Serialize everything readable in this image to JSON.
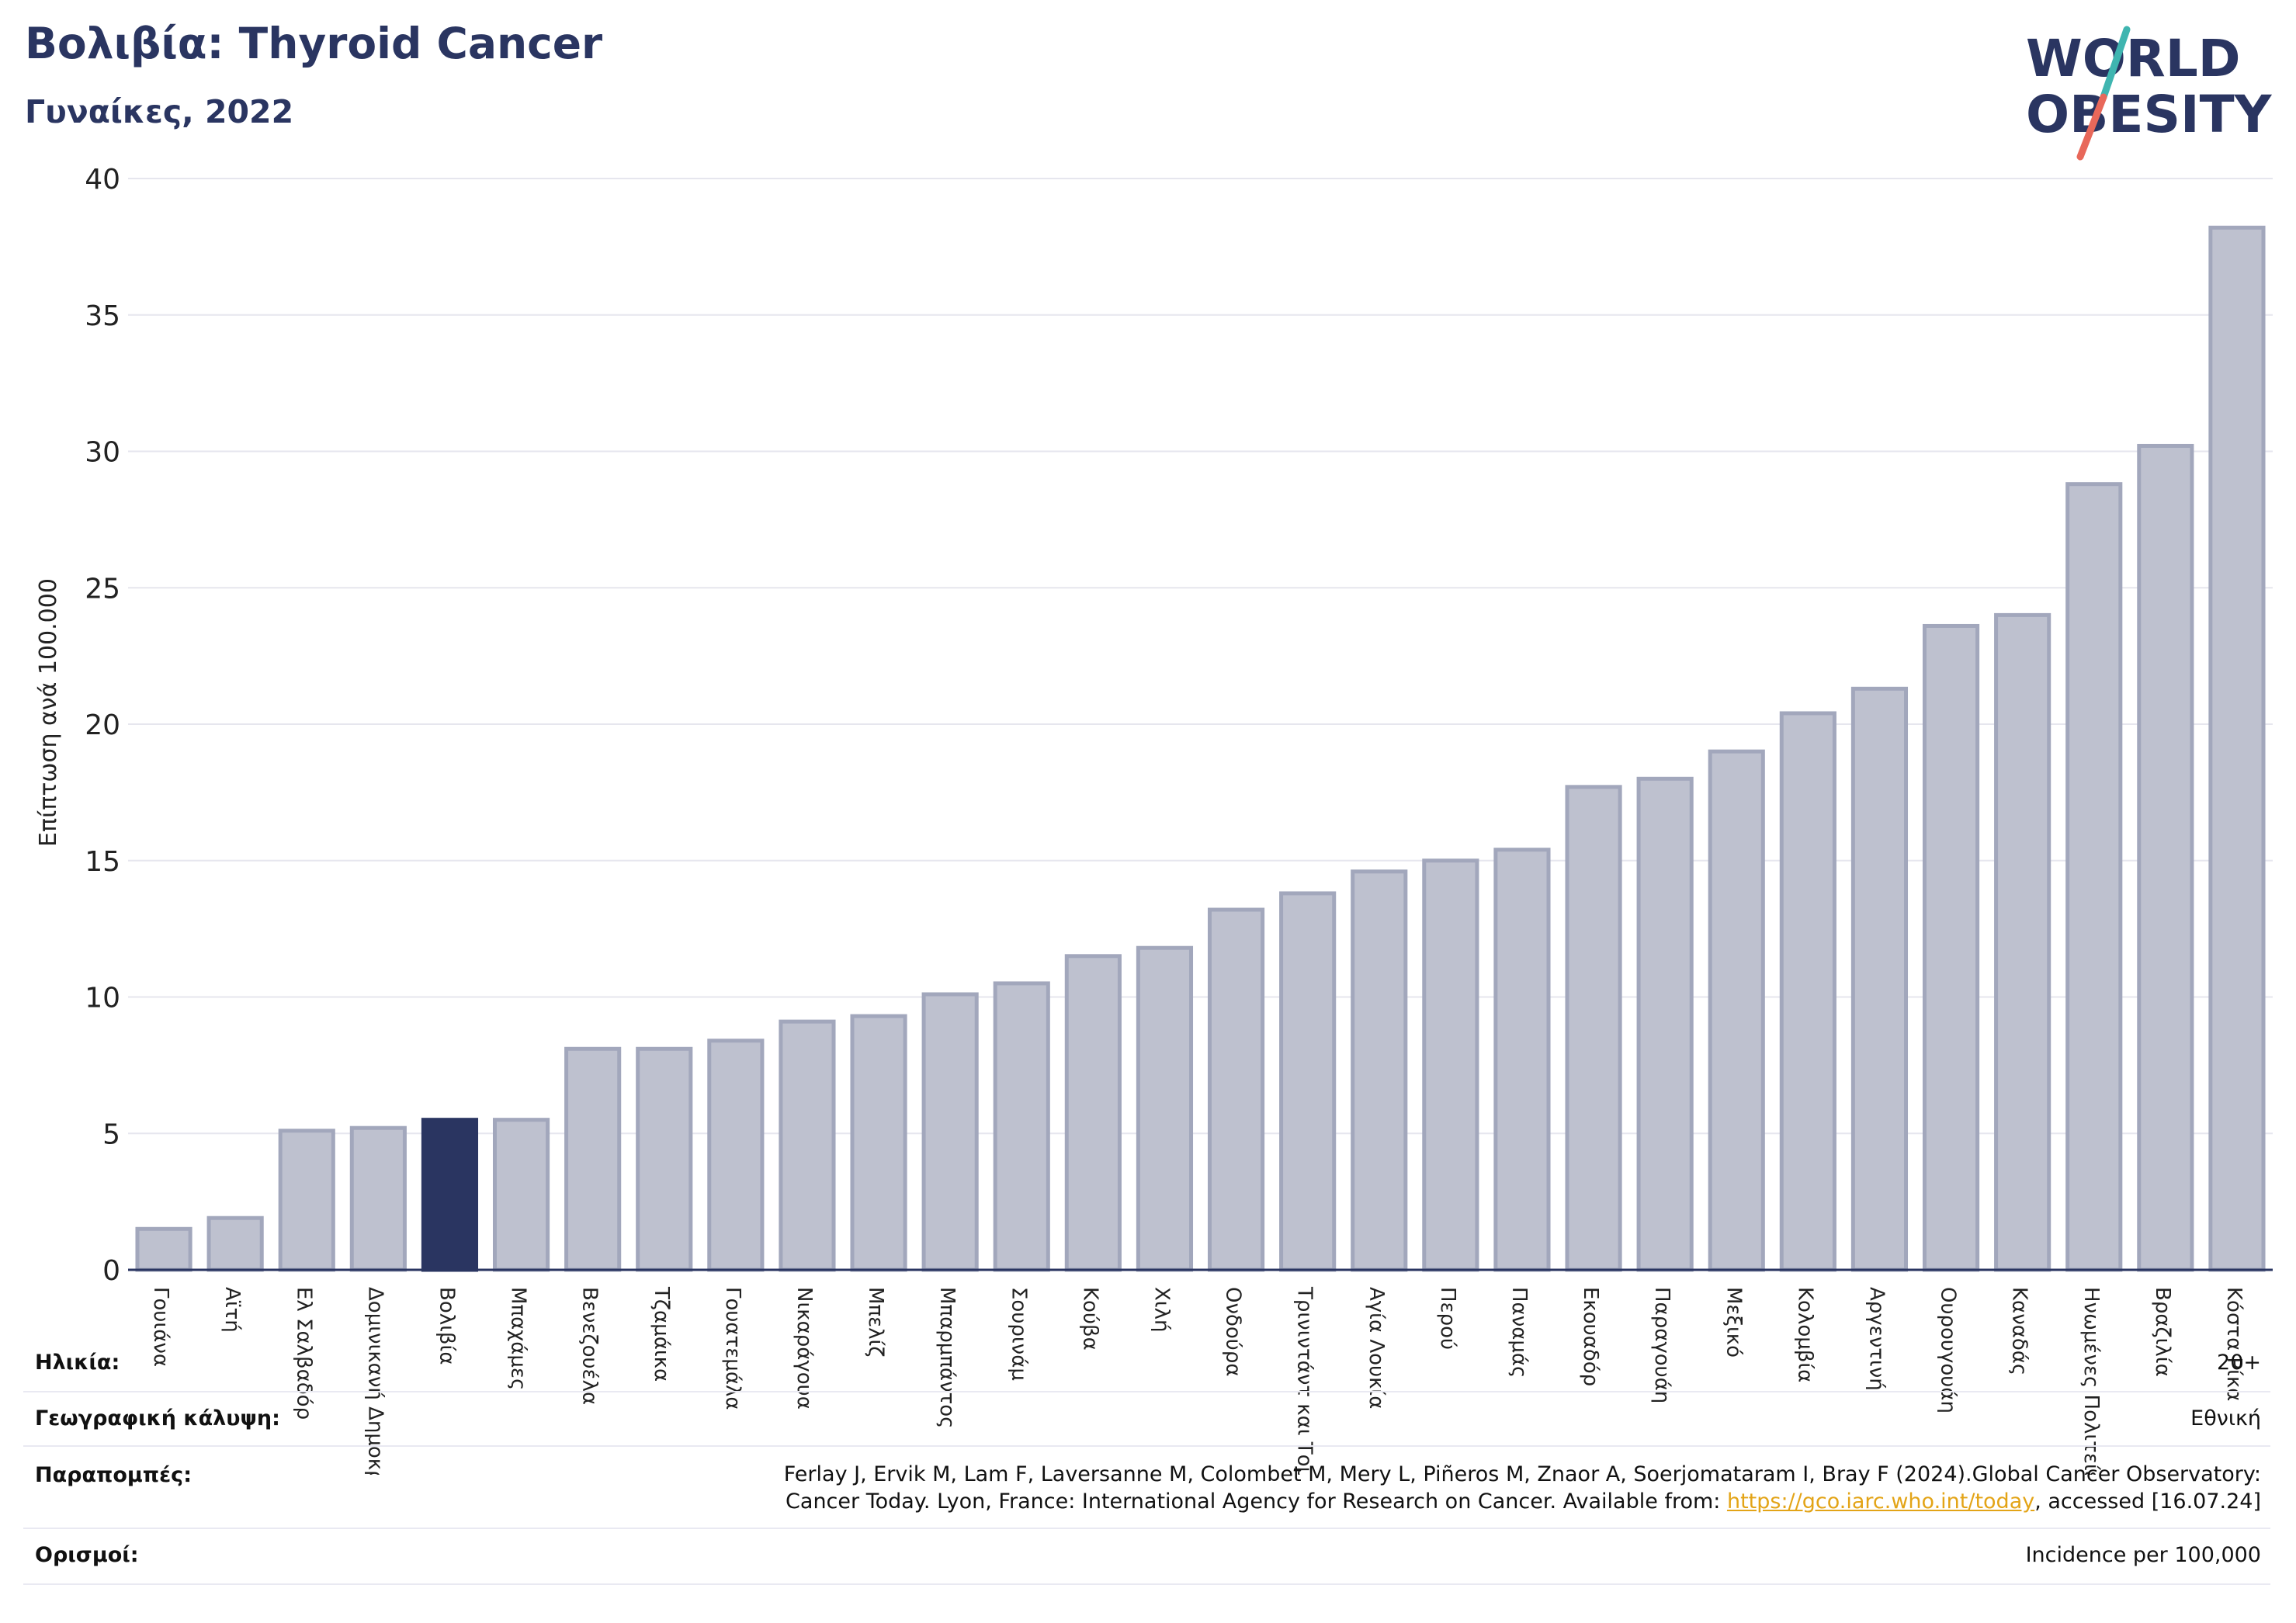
{
  "title": "Βολιβία: Thyroid Cancer",
  "subtitle": "Γυναίκες, 2022",
  "logo": {
    "line1": "WORLD",
    "line2": "OBESITY"
  },
  "colors": {
    "bar_default": "#bec1cf",
    "bar_border": "#a2a7bc",
    "bar_highlight": "#2a3561",
    "grid": "#e6e6ee",
    "logo_text": "#2a3561",
    "logo_teal": "#3fb5b0",
    "logo_coral": "#e8685a",
    "link": "#e3a417"
  },
  "chart_data": {
    "type": "bar",
    "title": "Βολιβία: Thyroid Cancer",
    "subtitle": "Γυναίκες, 2022",
    "ylabel": "Επίπτωση ανά 100.000",
    "xlabel": "",
    "ylim": [
      0,
      40
    ],
    "yticks": [
      0,
      5,
      10,
      15,
      20,
      25,
      30,
      35,
      40
    ],
    "grid": true,
    "highlight": "Βολιβία",
    "categories": [
      "Γουιάνα",
      "Αϊτή",
      "Ελ Σαλβαδόρ",
      "Δομινικανή Δημοκρατία",
      "Βολιβία",
      "Μπαχάμες",
      "Βενεζουέλα",
      "Τζαμάικα",
      "Γουατεμάλα",
      "Νικαράγουα",
      "Μπελίζ",
      "Μπαρμπάντος",
      "Σουρινάμ",
      "Κούβα",
      "Χιλή",
      "Ονδούρα",
      "Τρινιντάντ και Τομπάγκο",
      "Αγία Λουκία",
      "Περού",
      "Παναμάς",
      "Εκουαδόρ",
      "Παραγουάη",
      "Μεξικό",
      "Κολομβία",
      "Αργεντινή",
      "Ουρουγουάη",
      "Καναδάς",
      "Ηνωμένες Πολιτείες",
      "Βραζιλία",
      "Κόστα Ρίκα"
    ],
    "values": [
      1.5,
      1.9,
      5.1,
      5.2,
      5.5,
      5.5,
      8.1,
      8.1,
      8.4,
      9.1,
      9.3,
      10.1,
      10.5,
      11.5,
      11.8,
      13.2,
      13.8,
      14.6,
      15.0,
      15.4,
      17.7,
      18.0,
      19.0,
      20.4,
      21.3,
      23.6,
      24.0,
      28.8,
      30.2,
      38.2
    ]
  },
  "info": {
    "age_label": "Ηλικία:",
    "age_value": "20+",
    "coverage_label": "Γεωγραφική κάλυψη:",
    "coverage_value": "Εθνική",
    "references_label": "Παραπομπές:",
    "references_line1": "Ferlay J, Ervik M, Lam F, Laversanne M, Colombet M, Mery L, Piñeros M, Znaor A, Soerjomataram I, Bray F (2024).Global Cancer Observatory:",
    "references_line2_pre": "Cancer Today. Lyon, France: International Agency for Research on Cancer. Available from: ",
    "references_link": "https://gco.iarc.who.int/today",
    "references_line2_post": ", accessed [16.07.24]",
    "definitions_label": "Ορισμοί:",
    "definitions_value": "Incidence per 100,000"
  }
}
